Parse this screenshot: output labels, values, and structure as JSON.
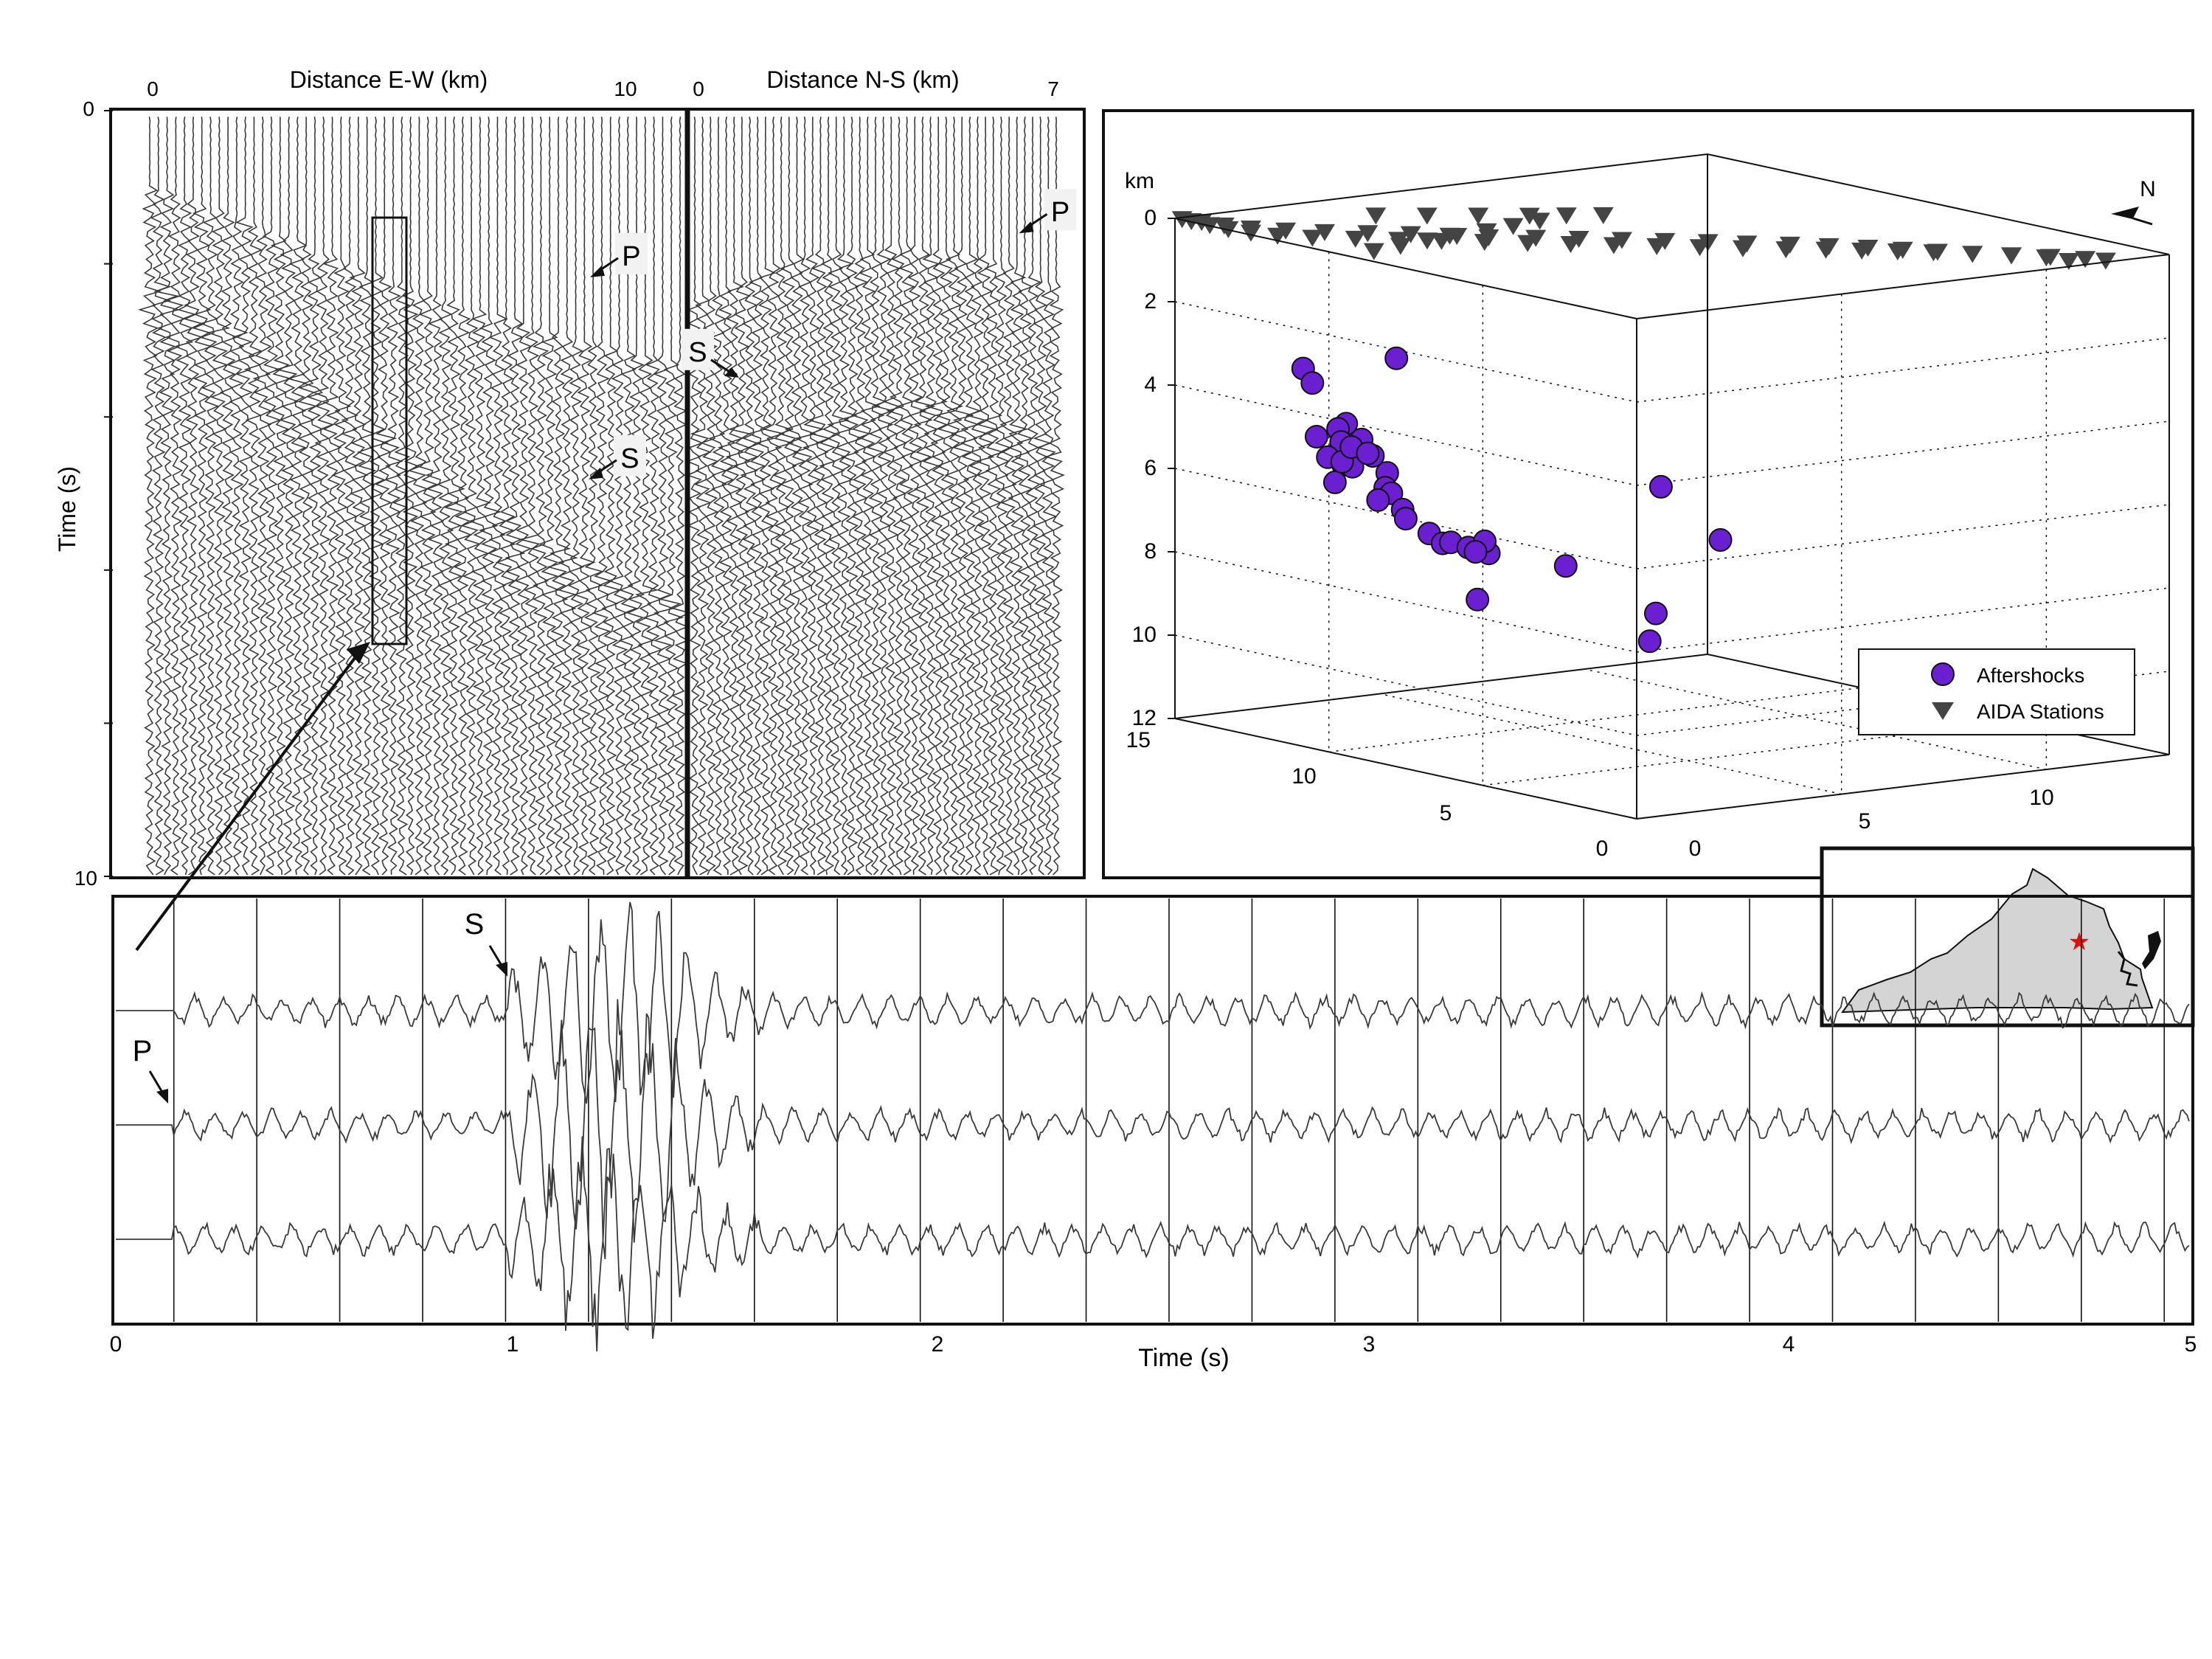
{
  "colors": {
    "trace": "#3a3a3a",
    "axis": "#111111",
    "aftershock": "#6a1fd0",
    "station": "#444444",
    "state_fill": "#d4d4d4",
    "star": "#e01010"
  },
  "chart_data": [
    {
      "type": "line",
      "panel": "record-section",
      "title": "",
      "xlabel_left": "Distance E-W (km)",
      "xlabel_right": "Distance N-S (km)",
      "ylabel": "Time (s)",
      "xlim_left": [
        0,
        10
      ],
      "xlim_right": [
        0,
        7
      ],
      "ylim": [
        0,
        10
      ],
      "x_ticks_left": [
        "0",
        "10"
      ],
      "x_ticks_right": [
        "0",
        "7"
      ],
      "y_ticks": [
        "0",
        "10"
      ],
      "trace_count_left": 62,
      "trace_count_right": 47,
      "phase_labels": [
        {
          "text": "P",
          "section": "E-W",
          "distance_km": 9.5,
          "time_s": 2.6
        },
        {
          "text": "S",
          "section": "E-W",
          "distance_km": 9.5,
          "time_s": 5.2
        },
        {
          "text": "S",
          "section": "N-S",
          "distance_km": 0.8,
          "time_s": 3.9
        },
        {
          "text": "P",
          "section": "N-S",
          "distance_km": 6.6,
          "time_s": 1.9
        }
      ],
      "arrivals_ew": {
        "distance_km": [
          0,
          2,
          4,
          6,
          8,
          10
        ],
        "p_s": [
          1.0,
          1.5,
          2.1,
          2.6,
          3.0,
          3.3
        ],
        "s_s": [
          2.2,
          3.0,
          4.0,
          5.0,
          5.8,
          6.4
        ]
      },
      "arrivals_ns": {
        "distance_km": [
          0,
          2,
          4,
          5.5,
          7
        ],
        "p_s": [
          2.5,
          1.9,
          1.8,
          1.9,
          2.3
        ],
        "s_s": [
          4.2,
          4.1,
          3.7,
          3.9,
          4.3
        ]
      },
      "highlight_box": {
        "distance_km": [
          4.6,
          5.3
        ],
        "time_s": [
          1.4,
          7.0
        ]
      }
    },
    {
      "type": "scatter",
      "panel": "hypocenter-3d",
      "title": "",
      "zlabel": "km",
      "z_ticks": [
        "0",
        "2",
        "4",
        "6",
        "8",
        "10",
        "12"
      ],
      "x_ticks": [
        "0",
        "5",
        "10",
        "15"
      ],
      "y_ticks": [
        "0",
        "5",
        "10"
      ],
      "zlim": [
        0,
        12
      ],
      "xlim": [
        0,
        15
      ],
      "ylim": [
        0,
        13
      ],
      "north_label": "N",
      "legend": {
        "position": "bottom-right",
        "entries": [
          "Aftershocks",
          "AIDA Stations"
        ]
      },
      "series": [
        {
          "name": "Aftershocks",
          "marker": "circle",
          "x": [
            11.9,
            11.6,
            10.5,
            11.2,
            11.8,
            10.9,
            10.8,
            10.7,
            10.6,
            10.3,
            10.0,
            9.9,
            9.7,
            9.5,
            9.3,
            9.2,
            9.6,
            9.1,
            8.6,
            8.3,
            7.9,
            7.6,
            7.2,
            6.8,
            6.3,
            5.5,
            4.2,
            5.6,
            8.9,
            10.6,
            10.5,
            10.2,
            9.8,
            4.7,
            4.9
          ],
          "y": [
            0.8,
            0.8,
            0.8,
            0.6,
            3.0,
            0.9,
            0.9,
            0.5,
            0.8,
            0.8,
            0.8,
            1.0,
            1.2,
            1.0,
            1.0,
            1.2,
            0.9,
            1.2,
            1.4,
            1.5,
            1.4,
            1.6,
            1.8,
            1.4,
            0.8,
            2.4,
            5.2,
            4.8,
            2.8,
            0.6,
            0.7,
            0.7,
            0.8,
            4.0,
            4.0
          ],
          "z": [
            3.2,
            3.5,
            4.3,
            4.7,
            3.2,
            4.5,
            4.8,
            5.1,
            5.3,
            5.3,
            4.6,
            5.0,
            5.4,
            5.7,
            5.8,
            6.2,
            6.0,
            6.4,
            6.7,
            6.9,
            6.8,
            6.9,
            7.0,
            6.6,
            6.7,
            7.1,
            6.6,
            5.5,
            8.5,
            5.7,
            5.2,
            4.8,
            4.9,
            8.3,
            9.0
          ]
        },
        {
          "name": "AIDA Stations",
          "marker": "triangle-down",
          "z_km": 0,
          "x": [
            0.2,
            0.6,
            1.2,
            1.8,
            2.4,
            3.0,
            3.5,
            4.0,
            4.5,
            5.0,
            5.6,
            6.2,
            6.8,
            7.4,
            8.0,
            8.6,
            9.2,
            9.8,
            10.4,
            11.0,
            11.6,
            12.2,
            12.8,
            13.4,
            14.0,
            14.6,
            0.6,
            1.2,
            1.8,
            2.4,
            3.0,
            3.6,
            4.2,
            4.8,
            5.4,
            6.0,
            6.6,
            7.2,
            7.8,
            8.4,
            9.0,
            9.6,
            10.2,
            10.8,
            11.4,
            12.0,
            12.6,
            13.2,
            13.8,
            14.4,
            14.9,
            10.6,
            10.4,
            10.2,
            10.1,
            10.0,
            9.8,
            9.6,
            10.4,
            10.8,
            11.2,
            11.8,
            12.4,
            13.0
          ],
          "y": [
            11.6,
            11.4,
            11.0,
            10.5,
            10.0,
            9.5,
            9.0,
            8.5,
            8.0,
            7.4,
            6.8,
            6.2,
            5.6,
            5.0,
            4.4,
            3.8,
            3.2,
            2.6,
            2.0,
            1.4,
            0.8,
            0.4,
            0.2,
            0.1,
            0.1,
            0.1,
            11.0,
            10.9,
            10.5,
            10.0,
            9.6,
            9.2,
            8.8,
            8.3,
            7.8,
            7.2,
            6.7,
            6.1,
            5.5,
            4.9,
            4.3,
            3.6,
            3.1,
            2.6,
            2.0,
            1.4,
            0.9,
            0.5,
            0.3,
            0.2,
            0.1,
            5.6,
            4.8,
            4.0,
            3.2,
            2.4,
            1.6,
            0.8,
            7.0,
            6.4,
            5.8,
            5.0,
            4.2,
            3.4
          ]
        }
      ]
    },
    {
      "type": "line",
      "panel": "waveforms",
      "title": "",
      "xlabel": "Time (s)",
      "xlim": [
        0,
        5
      ],
      "x_ticks": [
        "0",
        "1",
        "2",
        "3",
        "4",
        "5"
      ],
      "trace_count": 3,
      "p_arrival_s": 0.14,
      "s_arrival_s": 1.0,
      "phase_labels": [
        {
          "text": "P",
          "time_s": 0.08
        },
        {
          "text": "S",
          "time_s": 0.92
        }
      ]
    }
  ]
}
